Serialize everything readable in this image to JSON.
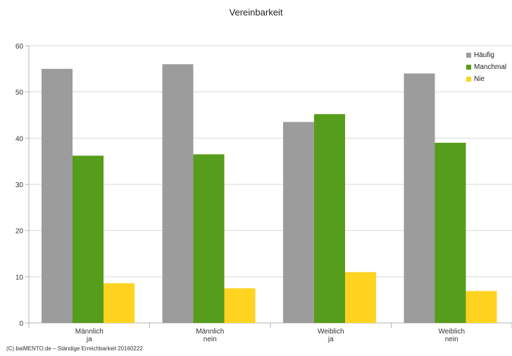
{
  "chart_data": {
    "type": "bar",
    "title": "Vereinbarkeit",
    "categories": [
      [
        "Männlich",
        "ja"
      ],
      [
        "Männlich",
        "nein"
      ],
      [
        "Weiblich",
        "ja"
      ],
      [
        "Weiblich",
        "nein"
      ]
    ],
    "series": [
      {
        "name": "Häufig",
        "color": "#9c9c9c",
        "values": [
          55,
          56,
          43.5,
          54
        ]
      },
      {
        "name": "Manchmal",
        "color": "#579d1c",
        "values": [
          36.2,
          36.5,
          45.2,
          39
        ]
      },
      {
        "name": "Nie",
        "color": "#ffd320",
        "values": [
          8.6,
          7.5,
          11,
          6.9
        ]
      }
    ],
    "ylim": [
      0,
      60
    ],
    "yticks": [
      0,
      10,
      20,
      30,
      40,
      50,
      60
    ],
    "grid": true,
    "legend": "top-right"
  },
  "footer": "(C) baiMENTO.de – Ständige Erreichbarkeit 20160222"
}
